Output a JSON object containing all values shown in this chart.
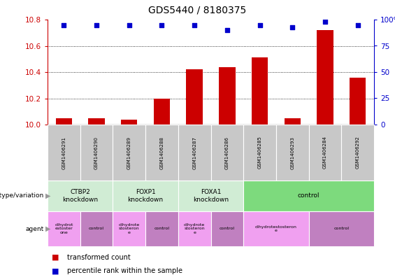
{
  "title": "GDS5440 / 8180375",
  "samples": [
    "GSM1406291",
    "GSM1406290",
    "GSM1406289",
    "GSM1406288",
    "GSM1406287",
    "GSM1406286",
    "GSM1406285",
    "GSM1406293",
    "GSM1406284",
    "GSM1406292"
  ],
  "red_values": [
    10.05,
    10.05,
    10.04,
    10.2,
    10.42,
    10.44,
    10.51,
    10.05,
    10.72,
    10.36
  ],
  "blue_values": [
    95,
    95,
    95,
    95,
    95,
    90,
    95,
    93,
    98,
    95
  ],
  "ylim_left": [
    10.0,
    10.8
  ],
  "ylim_right": [
    0,
    100
  ],
  "yticks_left": [
    10.0,
    10.2,
    10.4,
    10.6,
    10.8
  ],
  "yticks_right": [
    0,
    25,
    50,
    75,
    100
  ],
  "genotype_groups": [
    {
      "label": "CTBP2\nknockdown",
      "start": 0,
      "end": 2,
      "color": "#d0ecd4"
    },
    {
      "label": "FOXP1\nknockdown",
      "start": 2,
      "end": 4,
      "color": "#d0ecd4"
    },
    {
      "label": "FOXA1\nknockdown",
      "start": 4,
      "end": 6,
      "color": "#d0ecd4"
    },
    {
      "label": "control",
      "start": 6,
      "end": 10,
      "color": "#7dda7d"
    }
  ],
  "agent_groups": [
    {
      "label": "dihydrot\nestoster\none",
      "start": 0,
      "end": 1,
      "color": "#f0a0f0"
    },
    {
      "label": "control",
      "start": 1,
      "end": 2,
      "color": "#c080c0"
    },
    {
      "label": "dihydrote\nstosteron\ne",
      "start": 2,
      "end": 3,
      "color": "#f0a0f0"
    },
    {
      "label": "control",
      "start": 3,
      "end": 4,
      "color": "#c080c0"
    },
    {
      "label": "dihydrote\nstosteron\ne",
      "start": 4,
      "end": 5,
      "color": "#f0a0f0"
    },
    {
      "label": "control",
      "start": 5,
      "end": 6,
      "color": "#c080c0"
    },
    {
      "label": "dihydrotestosteron\ne",
      "start": 6,
      "end": 8,
      "color": "#f0a0f0"
    },
    {
      "label": "control",
      "start": 8,
      "end": 10,
      "color": "#c080c0"
    }
  ],
  "bar_color": "#cc0000",
  "dot_color": "#0000cc",
  "left_axis_color": "#cc0000",
  "right_axis_color": "#0000cc",
  "legend_red": "transformed count",
  "legend_blue": "percentile rank within the sample",
  "background_color": "#ffffff",
  "plot_bg": "#ffffff",
  "grid_lines": [
    10.2,
    10.4,
    10.6
  ],
  "sample_box_color": "#c8c8c8",
  "n_samples": 10
}
